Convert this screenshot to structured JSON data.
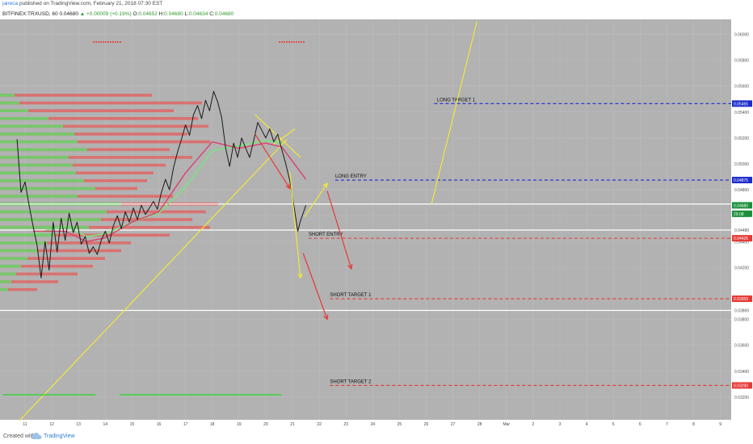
{
  "header": {
    "author": "jaireca",
    "published": "published on TradingView.com, February 21, 2018 07:30 EST",
    "symbol": "BITFINEX:TRXUSD, 60",
    "change": "▲ +0.00009 (+0.19%)",
    "o_label": "O:",
    "o_value": "0.04652",
    "h_label": "H:",
    "h_value": "0.04680",
    "l_label": "L:",
    "l_value": "0.04634",
    "c_label": "C:",
    "c_value": "0.04680",
    "last": "0.04680"
  },
  "footer": {
    "created": "Created with",
    "brand": "TradingView"
  },
  "chart_data": {
    "type": "line",
    "symbol": "BITFINEX:TRXUSD",
    "interval": "60",
    "ylim": [
      0.03025,
      0.06115
    ],
    "price_ticks": [
      {
        "label": "0.06000",
        "value": 0.06
      },
      {
        "label": "0.05800",
        "value": 0.058
      },
      {
        "label": "0.05600",
        "value": 0.056
      },
      {
        "label": "0.05400",
        "value": 0.054
      },
      {
        "label": "0.05200",
        "value": 0.052
      },
      {
        "label": "0.05000",
        "value": 0.05
      },
      {
        "label": "0.04800",
        "value": 0.048
      },
      {
        "label": "0.04600",
        "value": 0.046
      },
      {
        "label": "0.04400",
        "value": 0.044
      },
      {
        "label": "0.04200",
        "value": 0.042
      },
      {
        "label": "0.03800",
        "value": 0.038
      },
      {
        "label": "0.03600",
        "value": 0.036
      },
      {
        "label": "0.03400",
        "value": 0.034
      },
      {
        "label": "0.03200",
        "value": 0.032
      }
    ],
    "x_ticks": [
      "11",
      "12",
      "13",
      "14",
      "15",
      "16",
      "17",
      "18",
      "19",
      "20",
      "21",
      "22",
      "23",
      "24",
      "25",
      "26",
      "27",
      "28",
      "Mar",
      "2",
      "3",
      "4",
      "5",
      "6",
      "7",
      "8",
      "9"
    ],
    "levels": [
      {
        "label": "LONG TARGET 1",
        "price": 0.05465,
        "price_label": "0.05465",
        "color": "#1c2ccc",
        "label_day": 26.4,
        "start_day": 26.3
      },
      {
        "label": "LONG ENTRY",
        "price": 0.04875,
        "price_label": "0.04875",
        "color": "#1c2ccc",
        "label_day": 22.6,
        "start_day": 22.6
      },
      {
        "label": "SHORT ENTRY",
        "price": 0.04426,
        "price_label": "0.04426",
        "color": "#e53935",
        "label_day": 21.6,
        "start_day": 21.6
      },
      {
        "label": "SHORT TARGET 1",
        "price": 0.03959,
        "price_label": "0.03959",
        "color": "#e53935",
        "label_day": 22.4,
        "start_day": 22.4
      },
      {
        "label": "SHORT TARGET 2",
        "price": 0.0329,
        "price_label": "0.03290",
        "color": "#e53935",
        "label_day": 22.4,
        "start_day": 22.4
      }
    ],
    "horizontal_lines": [
      {
        "price": 0.0469,
        "label": "0.04690"
      },
      {
        "price": 0.04489,
        "label": "0.04489"
      },
      {
        "price": 0.03869,
        "label": "0.03869"
      }
    ],
    "badges": [
      {
        "label": "0.04680",
        "price": 0.0468,
        "color": "#1b8f3a"
      },
      {
        "label": "29:08",
        "price": 0.04615,
        "color": "#1b8f3a"
      }
    ],
    "price_series": [
      {
        "x": 10.7,
        "y": 0.0519
      },
      {
        "x": 10.85,
        "y": 0.0478
      },
      {
        "x": 11.0,
        "y": 0.0486
      },
      {
        "x": 11.15,
        "y": 0.0468
      },
      {
        "x": 11.3,
        "y": 0.0452
      },
      {
        "x": 11.45,
        "y": 0.0437
      },
      {
        "x": 11.6,
        "y": 0.0412
      },
      {
        "x": 11.75,
        "y": 0.044
      },
      {
        "x": 11.9,
        "y": 0.0418
      },
      {
        "x": 12.05,
        "y": 0.0455
      },
      {
        "x": 12.2,
        "y": 0.0432
      },
      {
        "x": 12.35,
        "y": 0.0458
      },
      {
        "x": 12.5,
        "y": 0.0441
      },
      {
        "x": 12.65,
        "y": 0.0462
      },
      {
        "x": 12.8,
        "y": 0.0447
      },
      {
        "x": 12.95,
        "y": 0.0455
      },
      {
        "x": 13.1,
        "y": 0.0438
      },
      {
        "x": 13.25,
        "y": 0.0444
      },
      {
        "x": 13.4,
        "y": 0.0431
      },
      {
        "x": 13.55,
        "y": 0.0436
      },
      {
        "x": 13.7,
        "y": 0.043
      },
      {
        "x": 13.85,
        "y": 0.0441
      },
      {
        "x": 14.0,
        "y": 0.0448
      },
      {
        "x": 14.15,
        "y": 0.0439
      },
      {
        "x": 14.3,
        "y": 0.0452
      },
      {
        "x": 14.45,
        "y": 0.046
      },
      {
        "x": 14.6,
        "y": 0.045
      },
      {
        "x": 14.75,
        "y": 0.0463
      },
      {
        "x": 14.9,
        "y": 0.0455
      },
      {
        "x": 15.05,
        "y": 0.0466
      },
      {
        "x": 15.2,
        "y": 0.0457
      },
      {
        "x": 15.35,
        "y": 0.0468
      },
      {
        "x": 15.5,
        "y": 0.0461
      },
      {
        "x": 15.65,
        "y": 0.0466
      },
      {
        "x": 15.8,
        "y": 0.0471
      },
      {
        "x": 15.95,
        "y": 0.0465
      },
      {
        "x": 16.1,
        "y": 0.0478
      },
      {
        "x": 16.25,
        "y": 0.0488
      },
      {
        "x": 16.4,
        "y": 0.048
      },
      {
        "x": 16.55,
        "y": 0.0497
      },
      {
        "x": 16.7,
        "y": 0.0509
      },
      {
        "x": 16.85,
        "y": 0.0519
      },
      {
        "x": 17.0,
        "y": 0.053
      },
      {
        "x": 17.15,
        "y": 0.0522
      },
      {
        "x": 17.3,
        "y": 0.0538
      },
      {
        "x": 17.45,
        "y": 0.0545
      },
      {
        "x": 17.6,
        "y": 0.0535
      },
      {
        "x": 17.75,
        "y": 0.0549
      },
      {
        "x": 17.9,
        "y": 0.0541
      },
      {
        "x": 18.05,
        "y": 0.0556
      },
      {
        "x": 18.2,
        "y": 0.0548
      },
      {
        "x": 18.35,
        "y": 0.0536
      },
      {
        "x": 18.5,
        "y": 0.0512
      },
      {
        "x": 18.65,
        "y": 0.0498
      },
      {
        "x": 18.8,
        "y": 0.0516
      },
      {
        "x": 18.95,
        "y": 0.0505
      },
      {
        "x": 19.1,
        "y": 0.052
      },
      {
        "x": 19.25,
        "y": 0.0512
      },
      {
        "x": 19.4,
        "y": 0.0505
      },
      {
        "x": 19.55,
        "y": 0.0518
      },
      {
        "x": 19.7,
        "y": 0.0532
      },
      {
        "x": 19.85,
        "y": 0.0526
      },
      {
        "x": 20.0,
        "y": 0.052
      },
      {
        "x": 20.15,
        "y": 0.0527
      },
      {
        "x": 20.3,
        "y": 0.0517
      },
      {
        "x": 20.45,
        "y": 0.0523
      },
      {
        "x": 20.6,
        "y": 0.0511
      },
      {
        "x": 20.75,
        "y": 0.05
      },
      {
        "x": 20.9,
        "y": 0.0487
      },
      {
        "x": 21.05,
        "y": 0.0468
      },
      {
        "x": 21.2,
        "y": 0.0448
      },
      {
        "x": 21.3,
        "y": 0.0456
      },
      {
        "x": 21.4,
        "y": 0.0462
      },
      {
        "x": 21.5,
        "y": 0.0468
      }
    ],
    "ema_red": [
      {
        "x": 11.3,
        "y": 0.0448
      },
      {
        "x": 12.5,
        "y": 0.0448
      },
      {
        "x": 13.3,
        "y": 0.044
      },
      {
        "x": 14.0,
        "y": 0.0443
      },
      {
        "x": 15.0,
        "y": 0.0455
      },
      {
        "x": 16.0,
        "y": 0.0463
      },
      {
        "x": 17.0,
        "y": 0.0493
      },
      {
        "x": 18.0,
        "y": 0.0517
      },
      {
        "x": 19.0,
        "y": 0.0512
      },
      {
        "x": 20.0,
        "y": 0.0516
      },
      {
        "x": 20.6,
        "y": 0.0513
      },
      {
        "x": 21.0,
        "y": 0.0502
      },
      {
        "x": 21.5,
        "y": 0.0488
      }
    ],
    "ema_green": [
      {
        "x": 11.3,
        "y": 0.0446
      },
      {
        "x": 12.5,
        "y": 0.0452
      },
      {
        "x": 13.3,
        "y": 0.0444
      },
      {
        "x": 14.0,
        "y": 0.0446
      },
      {
        "x": 15.0,
        "y": 0.0455
      },
      {
        "x": 16.0,
        "y": 0.0462
      },
      {
        "x": 17.0,
        "y": 0.0482
      },
      {
        "x": 18.0,
        "y": 0.051
      },
      {
        "x": 19.0,
        "y": 0.0514
      },
      {
        "x": 20.0,
        "y": 0.0518
      },
      {
        "x": 20.6,
        "y": 0.0516
      }
    ],
    "trendlines": [
      {
        "color": "#f2e83a",
        "points": [
          {
            "x": 10.8,
            "y": 0.0302
          },
          {
            "x": 20.8,
            "y": 0.0519
          }
        ]
      },
      {
        "color": "#f2e83a",
        "points": [
          {
            "x": 19.6,
            "y": 0.0538
          },
          {
            "x": 21.3,
            "y": 0.0505
          }
        ]
      },
      {
        "color": "#f2e83a",
        "points": [
          {
            "x": 26.2,
            "y": 0.0469
          },
          {
            "x": 27.9,
            "y": 0.061
          }
        ]
      },
      {
        "color": "#f2e83a",
        "points": [
          {
            "x": 20.3,
            "y": 0.0515
          },
          {
            "x": 21.1,
            "y": 0.0527
          }
        ]
      }
    ],
    "projection_arrows": [
      {
        "color": "#e53935",
        "from": {
          "x": 19.6,
          "y": 0.0523
        },
        "to": {
          "x": 20.9,
          "y": 0.0481
        }
      },
      {
        "color": "#f2e83a",
        "from": {
          "x": 20.9,
          "y": 0.0494
        },
        "to": {
          "x": 21.3,
          "y": 0.0412
        }
      },
      {
        "color": "#f2e83a",
        "from": {
          "x": 21.45,
          "y": 0.0459
        },
        "to": {
          "x": 22.3,
          "y": 0.0485
        }
      },
      {
        "color": "#e53935",
        "from": {
          "x": 22.3,
          "y": 0.0479
        },
        "to": {
          "x": 23.2,
          "y": 0.0419
        }
      },
      {
        "color": "#e53935",
        "from": {
          "x": 21.4,
          "y": 0.0431
        },
        "to": {
          "x": 22.3,
          "y": 0.038
        }
      }
    ],
    "volume_profile_centers": [
      0.0553,
      0.0547,
      0.0541,
      0.0535,
      0.0529,
      0.0523,
      0.0517,
      0.0511,
      0.0505,
      0.0499,
      0.0493,
      0.0487,
      0.0481,
      0.0475,
      0.0469,
      0.0463,
      0.0457,
      0.0451,
      0.0445,
      0.0439,
      0.0433,
      0.0427,
      0.0421,
      0.0415,
      0.0409,
      0.0403
    ],
    "grid": true
  }
}
